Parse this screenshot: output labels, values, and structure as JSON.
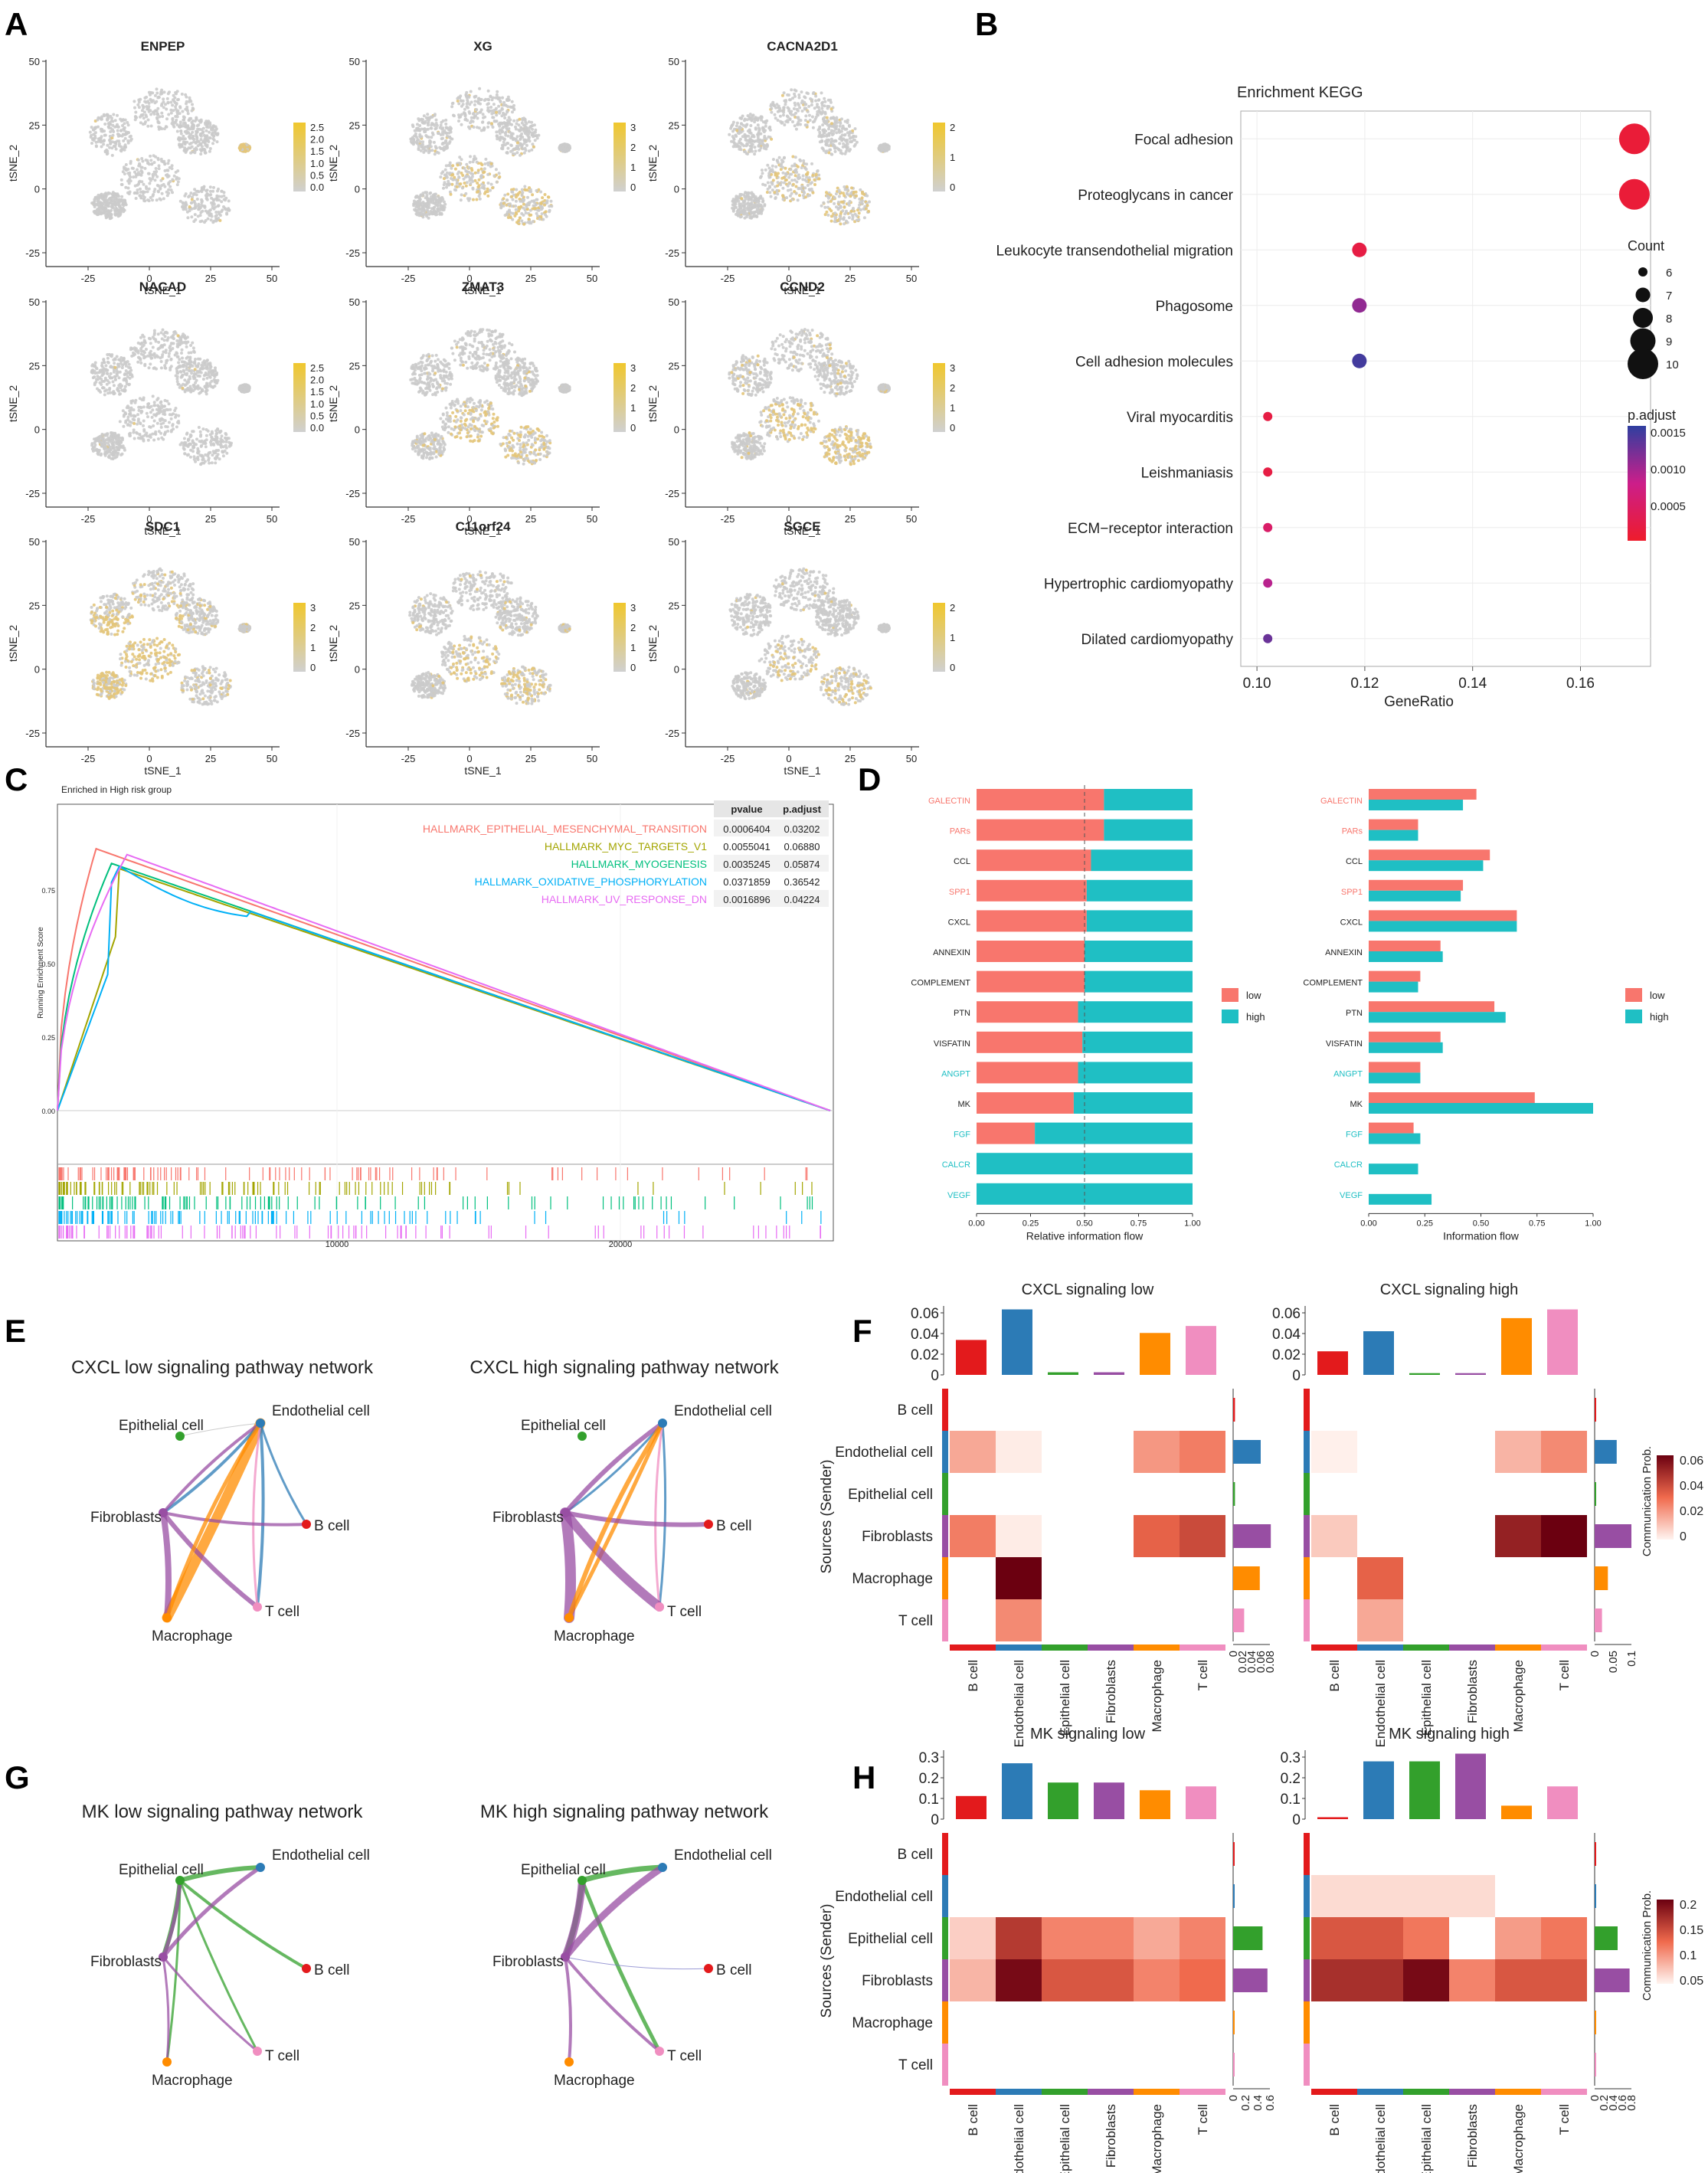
{
  "panels": {
    "A": "A",
    "B": "B",
    "C": "C",
    "D": "D",
    "E": "E",
    "F": "F",
    "G": "G",
    "H": "H"
  },
  "colors": {
    "gray": "#cbcbcb",
    "yellow": "#f0c72d",
    "red": "#f8766d",
    "teal": "#1fbfc4",
    "ct": {
      "B cell": "#e31a1c",
      "Endothelial cell": "#2c7bb6",
      "Epithelial cell": "#33a02c",
      "Fibroblasts": "#984ea3",
      "Macrophage": "#ff8c00",
      "T cell": "#f08ec0"
    }
  },
  "tsne": {
    "xlabel": "tSNE_1",
    "ylabel": "tSNE_2",
    "xticks": [
      "-25",
      "0",
      "25",
      "50"
    ],
    "yticks": [
      "50",
      "25",
      "0",
      "-25"
    ],
    "panels": [
      {
        "gene": "ENPEP",
        "legend": [
          "2.5",
          "2.0",
          "1.5",
          "1.0",
          "0.5",
          "0.0"
        ],
        "level": 0.05,
        "region": "right"
      },
      {
        "gene": "XG",
        "legend": [
          "3",
          "2",
          "1",
          "0"
        ],
        "level": 0.15,
        "region": "bottom"
      },
      {
        "gene": "CACNA2D1",
        "legend": [
          "2",
          "1",
          "0"
        ],
        "level": 0.2,
        "region": "bottom"
      },
      {
        "gene": "NACAD",
        "legend": [
          "2.5",
          "2.0",
          "1.5",
          "1.0",
          "0.5",
          "0.0"
        ],
        "level": 0.04,
        "region": "none"
      },
      {
        "gene": "ZMAT3",
        "legend": [
          "3",
          "2",
          "1",
          "0"
        ],
        "level": 0.25,
        "region": "bottom"
      },
      {
        "gene": "CCND2",
        "legend": [
          "3",
          "2",
          "1",
          "0"
        ],
        "level": 0.45,
        "region": "bottom"
      },
      {
        "gene": "SDC1",
        "legend": [
          "3",
          "2",
          "1",
          "0"
        ],
        "level": 0.7,
        "region": "left"
      },
      {
        "gene": "C11orf24",
        "legend": [
          "3",
          "2",
          "1",
          "0"
        ],
        "level": 0.3,
        "region": "bottom"
      },
      {
        "gene": "SGCE",
        "legend": [
          "2",
          "1",
          "0"
        ],
        "level": 0.12,
        "region": "bottom"
      }
    ]
  },
  "chart_data": [
    {
      "panel": "B",
      "type": "scatter",
      "title": "Enrichment KEGG",
      "xlabel": "GeneRatio",
      "ylabel": "",
      "xlim": [
        0.097,
        0.173
      ],
      "xticks": [
        "0.10",
        "0.12",
        "0.14",
        "0.16"
      ],
      "terms": [
        "Focal adhesion",
        "Proteoglycans in cancer",
        "Leukocyte transendothelial migration",
        "Phagosome",
        "Cell adhesion molecules",
        "Viral myocarditis",
        "Leishmaniasis",
        "ECM−receptor interaction",
        "Hypertrophic cardiomyopathy",
        "Dilated cardiomyopathy"
      ],
      "gene_ratio": [
        0.17,
        0.17,
        0.119,
        0.119,
        0.119,
        0.102,
        0.102,
        0.102,
        0.102,
        0.102
      ],
      "count": [
        10,
        10,
        7,
        7,
        7,
        6,
        6,
        6,
        6,
        6
      ],
      "p_adjust": [
        0.0001,
        0.0001,
        0.0002,
        0.0011,
        0.0015,
        0.0002,
        0.0002,
        0.0005,
        0.0009,
        0.0013
      ],
      "count_legend": {
        "title": "Count",
        "values": [
          "6",
          "7",
          "8",
          "9",
          "10"
        ]
      },
      "color_legend": {
        "title": "p.adjust",
        "values": [
          "0.0015",
          "0.0010",
          "0.0005"
        ]
      }
    },
    {
      "panel": "C",
      "type": "line",
      "title": "Enriched in High risk group",
      "ylabel": "Running Enrichment Score",
      "yticks": [
        "0.75",
        "0.50",
        "0.25",
        "0.00"
      ],
      "xticks": [
        "10000",
        "20000"
      ],
      "table_headers": [
        "pvalue",
        "p.adjust"
      ],
      "series": [
        {
          "name": "HALLMARK_EPITHELIAL_MESENCHYMAL_TRANSITION",
          "pvalue": "0.0006404",
          "padj": "0.03202",
          "color": "#f8766d",
          "peak": 0.89
        },
        {
          "name": "HALLMARK_MYC_TARGETS_V1",
          "pvalue": "0.0055041",
          "padj": "0.06880",
          "color": "#a3a500",
          "peak": 0.84
        },
        {
          "name": "HALLMARK_MYOGENESIS",
          "pvalue": "0.0035245",
          "padj": "0.05874",
          "color": "#00bf7d",
          "peak": 0.84
        },
        {
          "name": "HALLMARK_OXIDATIVE_PHOSPHORYLATION",
          "pvalue": "0.0371859",
          "padj": "0.36542",
          "color": "#00b0f6",
          "peak": 0.83
        },
        {
          "name": "HALLMARK_UV_RESPONSE_DN",
          "pvalue": "0.0016896",
          "padj": "0.04224",
          "color": "#e76bf3",
          "peak": 0.87
        }
      ]
    },
    {
      "panel": "D",
      "type": "bar",
      "categories": [
        "GALECTIN",
        "PARs",
        "CCL",
        "SPP1",
        "CXCL",
        "ANNEXIN",
        "COMPLEMENT",
        "PTN",
        "VISFATIN",
        "ANGPT",
        "MK",
        "FGF",
        "CALCR",
        "VEGF"
      ],
      "label_colors": [
        "red",
        "red",
        "black",
        "red",
        "black",
        "black",
        "black",
        "black",
        "black",
        "teal",
        "black",
        "teal",
        "teal",
        "teal"
      ],
      "relative_low": [
        0.59,
        0.59,
        0.53,
        0.51,
        0.51,
        0.5,
        0.5,
        0.47,
        0.49,
        0.47,
        0.45,
        0.27,
        0,
        0
      ],
      "info_low": [
        0.48,
        0.22,
        0.54,
        0.42,
        0.66,
        0.32,
        0.23,
        0.56,
        0.32,
        0.23,
        0.74,
        0.2,
        0,
        0
      ],
      "info_high": [
        0.42,
        0.22,
        0.51,
        0.41,
        0.66,
        0.33,
        0.22,
        0.61,
        0.33,
        0.23,
        1.0,
        0.23,
        0.22,
        0.28
      ],
      "xlabel_left": "Relative information flow",
      "xlabel_right": "Information flow",
      "xticks": [
        "0.00",
        "0.25",
        "0.50",
        "0.75",
        "1.00"
      ],
      "legend": [
        "low",
        "high"
      ]
    },
    {
      "panel": "E",
      "type": "network",
      "titles": [
        "CXCL low signaling pathway network",
        "CXCL high signaling pathway network"
      ],
      "nodes": [
        "Epithelial cell",
        "Endothelial cell",
        "Fibroblasts",
        "B cell",
        "Macrophage",
        "T cell"
      ]
    },
    {
      "panel": "F",
      "type": "heatmap",
      "titles": [
        "CXCL signaling  low",
        "CXCL signaling  high"
      ],
      "rows": [
        "B cell",
        "Endothelial cell",
        "Epithelial cell",
        "Fibroblasts",
        "Macrophage",
        "T cell"
      ],
      "cols": [
        "B cell",
        "Endothelial cell",
        "Epithelial cell",
        "Fibroblasts",
        "Macrophage",
        "T cell"
      ],
      "ylabel": "Sources (Sender)",
      "legend_title": "Communication Prob.",
      "legend_ticks": [
        "0.06",
        "0.04",
        "0.02",
        "0"
      ],
      "vmax": 0.065,
      "low": [
        [
          0,
          0,
          0,
          0,
          0,
          0
        ],
        [
          0.018,
          0.002,
          0,
          0,
          0.022,
          0.028
        ],
        [
          0,
          0,
          0,
          0,
          0,
          0
        ],
        [
          0.028,
          0.002,
          0,
          0,
          0.035,
          0.042
        ],
        [
          0,
          0.065,
          0,
          0,
          0,
          0
        ],
        [
          0,
          0.025,
          0,
          0,
          0,
          0
        ]
      ],
      "high": [
        [
          0,
          0,
          0,
          0,
          0,
          0
        ],
        [
          0.001,
          0,
          0,
          0,
          0.015,
          0.025
        ],
        [
          0,
          0,
          0,
          0,
          0,
          0
        ],
        [
          0.01,
          0,
          0,
          0,
          0.055,
          0.065
        ],
        [
          0,
          0.035,
          0,
          0,
          0,
          0
        ],
        [
          0,
          0.018,
          0,
          0,
          0,
          0
        ]
      ],
      "top_low": [
        0.04,
        0.075,
        0.003,
        0.003,
        0.048,
        0.056
      ],
      "top_high": [
        0.027,
        0.05,
        0.002,
        0.002,
        0.065,
        0.075
      ],
      "top_ticks": [
        "0.06",
        "0.04",
        "0.02",
        "0"
      ],
      "top_max": 0.075,
      "right_low": [
        0.004,
        0.06,
        0.004,
        0.082,
        0.058,
        0.024
      ],
      "right_high": [
        0.004,
        0.06,
        0.004,
        0.1,
        0.036,
        0.02
      ],
      "right_ticks_low": [
        "0",
        "0.02",
        "0.04",
        "0.06",
        "0.08"
      ],
      "right_ticks_high": [
        "0",
        "0.05",
        "0.1"
      ]
    },
    {
      "panel": "G",
      "type": "network",
      "titles": [
        "MK low signaling pathway network",
        "MK high signaling pathway network"
      ],
      "nodes": [
        "Epithelial cell",
        "Endothelial cell",
        "Fibroblasts",
        "B cell",
        "Macrophage",
        "T cell"
      ]
    },
    {
      "panel": "H",
      "type": "heatmap",
      "titles": [
        "MK signaling  low",
        "MK signaling  high"
      ],
      "rows": [
        "B cell",
        "Endothelial cell",
        "Epithelial cell",
        "Fibroblasts",
        "Macrophage",
        "T cell"
      ],
      "cols": [
        "B cell",
        "Endothelial cell",
        "Epithelial cell",
        "Fibroblasts",
        "Macrophage",
        "T cell"
      ],
      "ylabel": "Sources (Sender)",
      "legend_title": "Communication Prob.",
      "legend_ticks": [
        "0.2",
        "0.15",
        "0.1",
        "0.05"
      ],
      "vmax": 0.22,
      "low": [
        [
          0,
          0,
          0,
          0,
          0,
          0
        ],
        [
          0,
          0,
          0,
          0,
          0,
          0
        ],
        [
          0.03,
          0.16,
          0.09,
          0.09,
          0.06,
          0.09
        ],
        [
          0.05,
          0.21,
          0.13,
          0.13,
          0.09,
          0.11
        ],
        [
          0,
          0,
          0,
          0,
          0,
          0
        ],
        [
          0,
          0,
          0,
          0,
          0,
          0
        ]
      ],
      "high": [
        [
          0,
          0,
          0,
          0,
          0,
          0
        ],
        [
          0.02,
          0.02,
          0.02,
          0.02,
          0,
          0
        ],
        [
          0.13,
          0.13,
          0.1,
          0,
          0.07,
          0.1
        ],
        [
          0.17,
          0.17,
          0.21,
          0.09,
          0.13,
          0.13
        ],
        [
          0,
          0,
          0,
          0,
          0,
          0
        ],
        [
          0,
          0,
          0,
          0,
          0,
          0
        ]
      ],
      "top_low": [
        0.12,
        0.29,
        0.19,
        0.19,
        0.15,
        0.17
      ],
      "top_high": [
        0.01,
        0.3,
        0.3,
        0.34,
        0.07,
        0.17
      ],
      "top_ticks_low": [
        "0.3",
        "0.2",
        "0.1",
        "0"
      ],
      "top_ticks_high": [
        "0.3",
        "0.2",
        "0.1",
        "0"
      ],
      "top_max": 0.34,
      "right_low": [
        0.005,
        0.003,
        0.48,
        0.56,
        0.005,
        0.003
      ],
      "right_high": [
        0.01,
        0.008,
        0.5,
        0.76,
        0.01,
        0.005
      ],
      "right_ticks_low": [
        "0",
        "0.2",
        "0.4",
        "0.6"
      ],
      "right_ticks_high": [
        "0",
        "0.2",
        "0.4",
        "0.6",
        "0.8"
      ]
    }
  ]
}
